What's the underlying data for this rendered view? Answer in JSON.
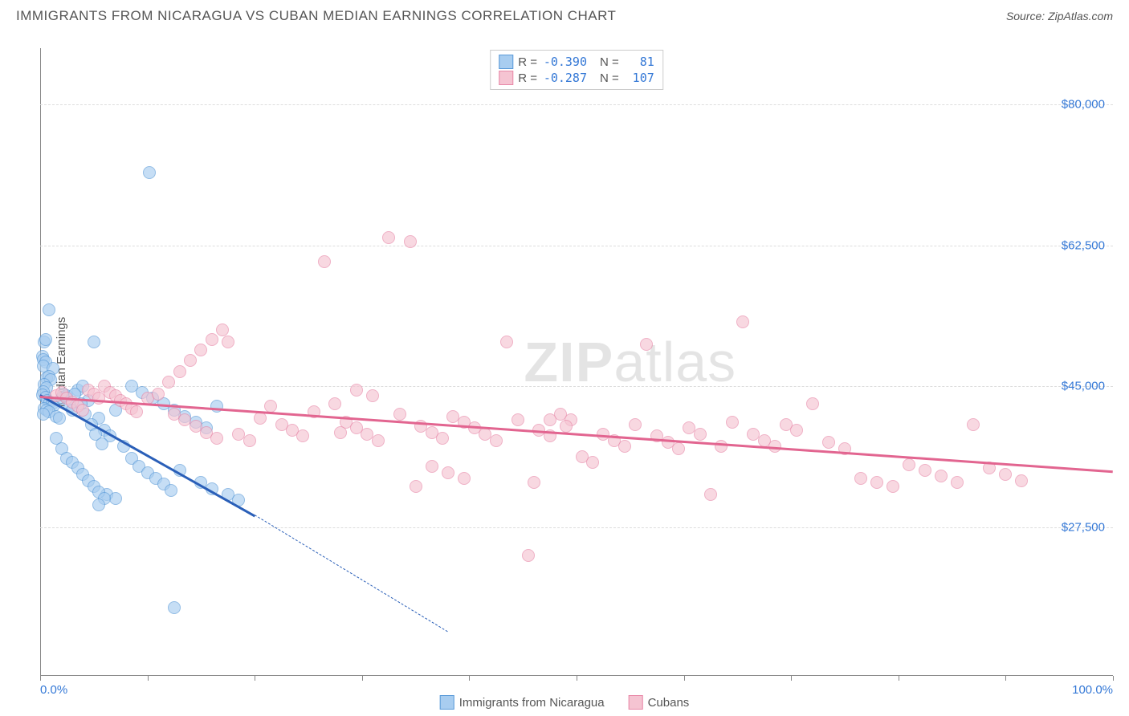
{
  "title": "IMMIGRANTS FROM NICARAGUA VS CUBAN MEDIAN EARNINGS CORRELATION CHART",
  "source": "Source: ZipAtlas.com",
  "watermark_main": "ZIP",
  "watermark_sub": "atlas",
  "chart": {
    "type": "scatter",
    "ylabel": "Median Earnings",
    "x_min_label": "0.0%",
    "x_max_label": "100.0%",
    "xlim": [
      0,
      100
    ],
    "ylim": [
      9000,
      87000
    ],
    "yticks": [
      27500,
      45000,
      62500,
      80000
    ],
    "ytick_labels": [
      "$27,500",
      "$45,000",
      "$62,500",
      "$80,000"
    ],
    "xtick_positions": [
      0,
      10,
      20,
      30,
      40,
      50,
      60,
      70,
      80,
      90,
      100
    ],
    "background_color": "#ffffff",
    "grid_color": "#dddddd",
    "axis_label_color": "#3478d6",
    "text_color": "#555555"
  },
  "series": [
    {
      "name": "Immigrants from Nicaragua",
      "fill_color": "#a8cdf0",
      "stroke_color": "#5a9ad8",
      "line_color": "#2a5fb8",
      "R": "-0.390",
      "N": "81",
      "trend": {
        "x1": 0,
        "y1": 44000,
        "x2": 20,
        "y2": 29000,
        "dash_to_x": 38,
        "dash_to_y": 14500
      },
      "points": [
        [
          0.2,
          48700
        ],
        [
          0.3,
          48300
        ],
        [
          0.5,
          48000
        ],
        [
          0.3,
          47500
        ],
        [
          0.4,
          50500
        ],
        [
          0.5,
          50800
        ],
        [
          0.8,
          54500
        ],
        [
          1.2,
          47200
        ],
        [
          0.6,
          46000
        ],
        [
          0.8,
          46200
        ],
        [
          1.0,
          45800
        ],
        [
          0.4,
          45200
        ],
        [
          0.6,
          44800
        ],
        [
          0.3,
          44300
        ],
        [
          0.2,
          43900
        ],
        [
          0.5,
          43600
        ],
        [
          0.7,
          43200
        ],
        [
          0.9,
          43000
        ],
        [
          1.1,
          42800
        ],
        [
          1.3,
          42600
        ],
        [
          0.4,
          42200
        ],
        [
          0.6,
          42000
        ],
        [
          0.8,
          41800
        ],
        [
          0.3,
          41500
        ],
        [
          1.5,
          41200
        ],
        [
          1.8,
          41000
        ],
        [
          2.0,
          43500
        ],
        [
          2.2,
          44000
        ],
        [
          2.5,
          43800
        ],
        [
          2.8,
          42500
        ],
        [
          3.0,
          42000
        ],
        [
          3.5,
          44500
        ],
        [
          4.0,
          45000
        ],
        [
          4.5,
          43200
        ],
        [
          5.0,
          50500
        ],
        [
          5.5,
          41000
        ],
        [
          6.0,
          39500
        ],
        [
          6.5,
          38800
        ],
        [
          7.0,
          42000
        ],
        [
          7.8,
          37500
        ],
        [
          8.5,
          36000
        ],
        [
          9.2,
          35000
        ],
        [
          10.0,
          34200
        ],
        [
          10.8,
          33500
        ],
        [
          11.5,
          32800
        ],
        [
          12.2,
          32000
        ],
        [
          6.2,
          31500
        ],
        [
          7.0,
          31000
        ],
        [
          3.2,
          44000
        ],
        [
          3.8,
          42800
        ],
        [
          4.2,
          41500
        ],
        [
          4.8,
          40200
        ],
        [
          5.2,
          39000
        ],
        [
          5.8,
          37800
        ],
        [
          1.5,
          38500
        ],
        [
          2.0,
          37200
        ],
        [
          2.5,
          36000
        ],
        [
          3.0,
          35500
        ],
        [
          3.5,
          34800
        ],
        [
          4.0,
          34000
        ],
        [
          4.5,
          33200
        ],
        [
          5.0,
          32500
        ],
        [
          5.5,
          31800
        ],
        [
          6.0,
          31000
        ],
        [
          8.5,
          45000
        ],
        [
          9.5,
          44200
        ],
        [
          10.5,
          43500
        ],
        [
          11.5,
          42800
        ],
        [
          12.5,
          42000
        ],
        [
          13.5,
          41200
        ],
        [
          14.5,
          40500
        ],
        [
          15.5,
          39800
        ],
        [
          16.5,
          42500
        ],
        [
          17.5,
          31500
        ],
        [
          18.5,
          30800
        ],
        [
          15.0,
          33000
        ],
        [
          16.0,
          32200
        ],
        [
          13.0,
          34500
        ],
        [
          10.2,
          71500
        ],
        [
          12.5,
          17500
        ],
        [
          5.5,
          30200
        ]
      ]
    },
    {
      "name": "Cubans",
      "fill_color": "#f5c4d2",
      "stroke_color": "#e888a8",
      "line_color": "#e26590",
      "R": "-0.287",
      "N": "107",
      "trend": {
        "x1": 0,
        "y1": 43800,
        "x2": 100,
        "y2": 34500
      },
      "points": [
        [
          1.5,
          43800
        ],
        [
          2.0,
          44200
        ],
        [
          2.5,
          43500
        ],
        [
          3.0,
          43000
        ],
        [
          3.5,
          42500
        ],
        [
          4.0,
          42000
        ],
        [
          4.5,
          44500
        ],
        [
          5.0,
          44000
        ],
        [
          5.5,
          43500
        ],
        [
          6.0,
          45000
        ],
        [
          6.5,
          44200
        ],
        [
          7.0,
          43800
        ],
        [
          7.5,
          43200
        ],
        [
          8.0,
          42800
        ],
        [
          8.5,
          42200
        ],
        [
          9.0,
          41800
        ],
        [
          10.0,
          43500
        ],
        [
          11.0,
          44000
        ],
        [
          12.0,
          45500
        ],
        [
          13.0,
          46800
        ],
        [
          14.0,
          48200
        ],
        [
          15.0,
          49500
        ],
        [
          16.0,
          50800
        ],
        [
          17.0,
          52000
        ],
        [
          12.5,
          41500
        ],
        [
          13.5,
          40800
        ],
        [
          14.5,
          40000
        ],
        [
          15.5,
          39200
        ],
        [
          16.5,
          38500
        ],
        [
          17.5,
          50500
        ],
        [
          18.5,
          39000
        ],
        [
          19.5,
          38200
        ],
        [
          20.5,
          41000
        ],
        [
          21.5,
          42500
        ],
        [
          22.5,
          40200
        ],
        [
          23.5,
          39500
        ],
        [
          24.5,
          38800
        ],
        [
          25.5,
          41800
        ],
        [
          26.5,
          60500
        ],
        [
          27.5,
          42800
        ],
        [
          28.5,
          40500
        ],
        [
          29.5,
          39800
        ],
        [
          30.5,
          39000
        ],
        [
          31.5,
          38200
        ],
        [
          32.5,
          63500
        ],
        [
          33.5,
          41500
        ],
        [
          34.5,
          63000
        ],
        [
          35.5,
          40000
        ],
        [
          36.5,
          39200
        ],
        [
          37.5,
          38500
        ],
        [
          38.5,
          41200
        ],
        [
          39.5,
          40500
        ],
        [
          40.5,
          39800
        ],
        [
          41.5,
          39000
        ],
        [
          42.5,
          38200
        ],
        [
          43.5,
          50500
        ],
        [
          44.5,
          40800
        ],
        [
          45.5,
          24000
        ],
        [
          46.5,
          39500
        ],
        [
          47.5,
          38800
        ],
        [
          48.5,
          41500
        ],
        [
          49.5,
          40800
        ],
        [
          50.5,
          36200
        ],
        [
          51.5,
          35500
        ],
        [
          52.5,
          39000
        ],
        [
          53.5,
          38200
        ],
        [
          54.5,
          37500
        ],
        [
          55.5,
          40200
        ],
        [
          56.5,
          50200
        ],
        [
          57.5,
          38800
        ],
        [
          58.5,
          38000
        ],
        [
          59.5,
          37200
        ],
        [
          60.5,
          39800
        ],
        [
          61.5,
          39000
        ],
        [
          62.5,
          31500
        ],
        [
          63.5,
          37500
        ],
        [
          64.5,
          40500
        ],
        [
          65.5,
          53000
        ],
        [
          66.5,
          39000
        ],
        [
          67.5,
          38200
        ],
        [
          68.5,
          37500
        ],
        [
          69.5,
          40200
        ],
        [
          70.5,
          39500
        ],
        [
          72.0,
          42800
        ],
        [
          73.5,
          38000
        ],
        [
          75.0,
          37200
        ],
        [
          76.5,
          33500
        ],
        [
          78.0,
          33000
        ],
        [
          79.5,
          32500
        ],
        [
          81.0,
          35200
        ],
        [
          82.5,
          34500
        ],
        [
          84.0,
          33800
        ],
        [
          85.5,
          33000
        ],
        [
          87.0,
          40200
        ],
        [
          88.5,
          34800
        ],
        [
          90.0,
          34000
        ],
        [
          91.5,
          33200
        ],
        [
          35.0,
          32500
        ],
        [
          36.5,
          35000
        ],
        [
          38.0,
          34200
        ],
        [
          39.5,
          33500
        ],
        [
          46.0,
          33000
        ],
        [
          47.5,
          40800
        ],
        [
          49.0,
          40000
        ],
        [
          28.0,
          39200
        ],
        [
          29.5,
          44500
        ],
        [
          31.0,
          43800
        ]
      ]
    }
  ],
  "bottom_legend": {
    "items": [
      {
        "label": "Immigrants from Nicaragua",
        "fill": "#a8cdf0",
        "stroke": "#5a9ad8"
      },
      {
        "label": "Cubans",
        "fill": "#f5c4d2",
        "stroke": "#e888a8"
      }
    ]
  }
}
